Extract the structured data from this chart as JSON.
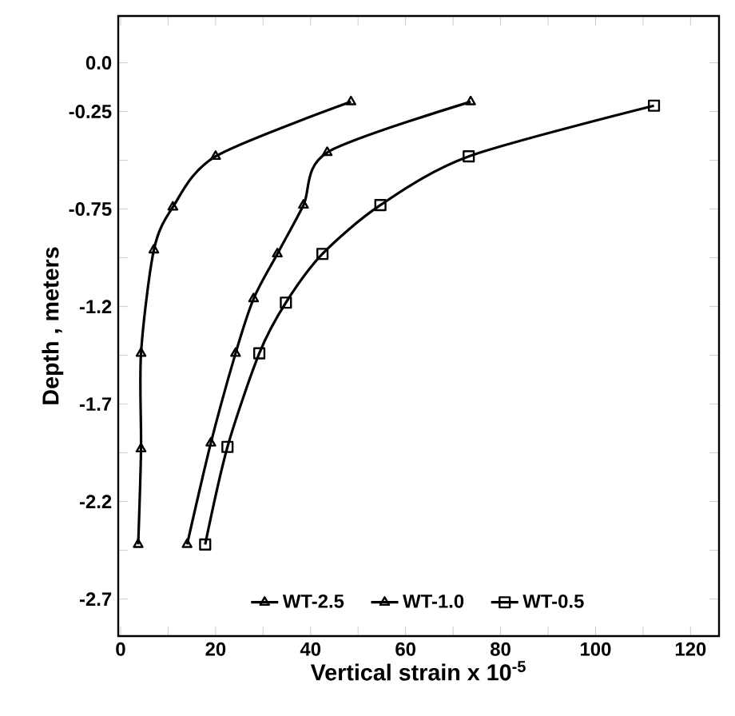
{
  "chart_data": {
    "type": "line",
    "xlabel": "Vertical strain x 10$^{-5}$",
    "ylabel": "Depth ,   meters",
    "series": [
      {
        "name": "WT-2.5",
        "color": "#000000",
        "marker": "triangle",
        "x": [
          48.5,
          20,
          11,
          7,
          4.3,
          4.3,
          3.7
        ],
        "values": [
          -0.2,
          -0.48,
          -0.74,
          -0.96,
          -1.49,
          -1.98,
          -2.47
        ]
      },
      {
        "name": "WT-1.0",
        "color": "#000000",
        "marker": "triangle",
        "x": [
          73.7,
          43.5,
          38.5,
          33,
          28,
          24.2,
          19,
          14
        ],
        "values": [
          -0.2,
          -0.46,
          -0.73,
          -0.98,
          -1.21,
          -1.49,
          -1.95,
          -2.47
        ]
      },
      {
        "name": "WT-0.5",
        "color": "#000000",
        "marker": "square",
        "x": [
          112.3,
          73.3,
          54.7,
          42.5,
          34.8,
          29.2,
          22.5,
          17.8
        ],
        "values": [
          -0.22,
          -0.48,
          -0.73,
          -0.98,
          -1.23,
          -1.49,
          -1.97,
          -2.47
        ]
      }
    ],
    "xlim": [
      -0.5,
      126
    ],
    "ylim": [
      -2.94,
      0.24
    ],
    "xticks": [
      0,
      {
        "value": 10,
        "label": null
      },
      20,
      {
        "value": 30,
        "label": null
      },
      40,
      {
        "value": 50,
        "label": null
      },
      60,
      {
        "value": 70,
        "label": null
      },
      80,
      {
        "value": 90,
        "label": null
      },
      100,
      {
        "value": 110,
        "label": null
      },
      120
    ],
    "yticks": [
      {
        "value": 0,
        "label": "0.0"
      },
      -0.25,
      {
        "value": -0.5,
        "label": null
      },
      -0.75,
      {
        "value": -1.0,
        "label": null
      },
      {
        "value": -1.25,
        "label": "-1.2"
      },
      {
        "value": -1.5,
        "label": null
      },
      {
        "value": -1.75,
        "label": "-1.7"
      },
      {
        "value": -2.0,
        "label": null
      },
      {
        "value": -2.25,
        "label": "-2.2"
      },
      {
        "value": -2.5,
        "label": null
      },
      {
        "value": -2.75,
        "label": "-2.7"
      }
    ],
    "legend": "bottom",
    "grid": false,
    "line_style": "solid"
  }
}
